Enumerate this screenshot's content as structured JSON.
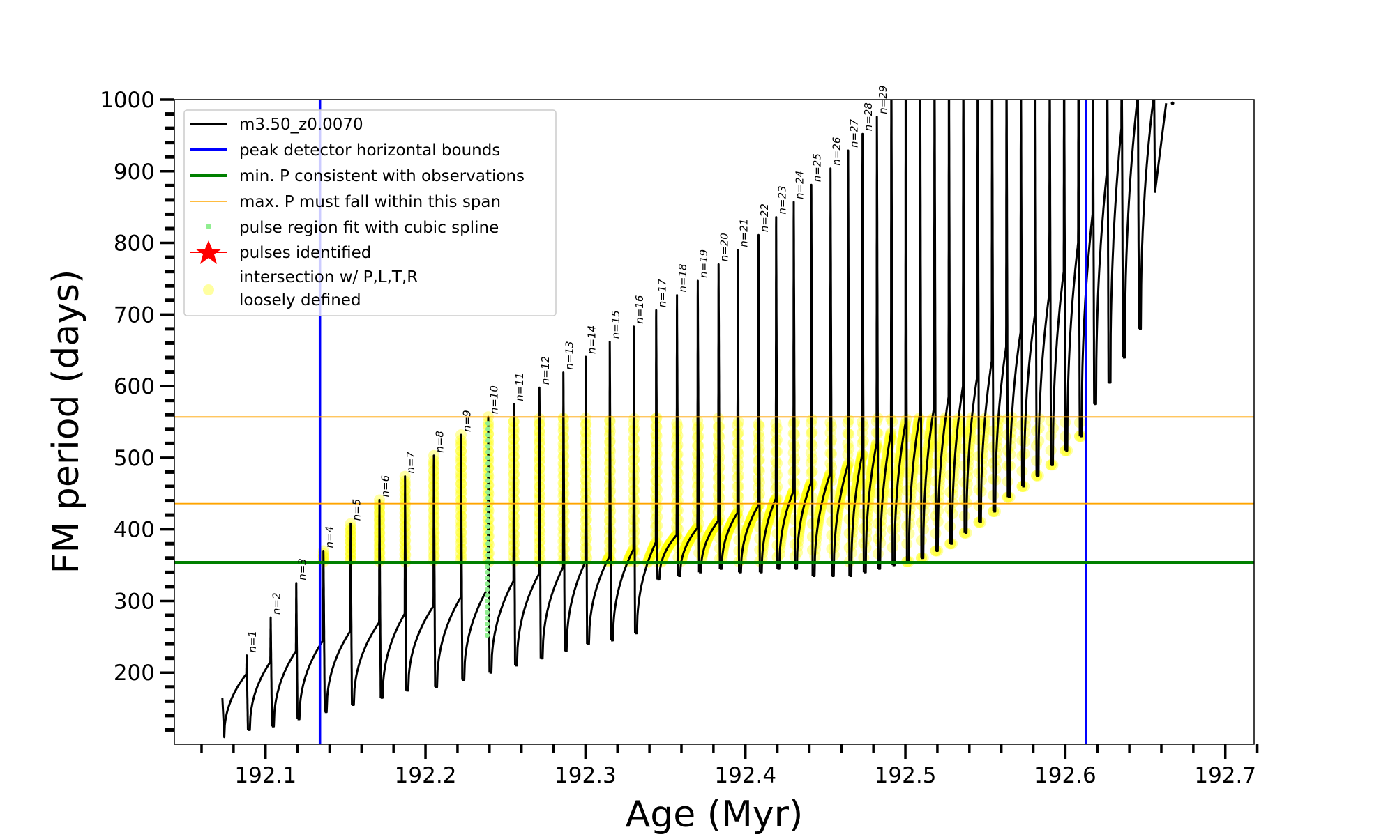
{
  "chart_data": {
    "type": "line",
    "title": "",
    "xlabel": "Age (Myr)",
    "ylabel": "FM period (days)",
    "xlim": [
      192.043,
      192.718
    ],
    "ylim": [
      100,
      1000
    ],
    "xticks": [
      "192.1",
      "192.2",
      "192.3",
      "192.4",
      "192.5",
      "192.6",
      "192.7"
    ],
    "yticks": [
      "200",
      "300",
      "400",
      "500",
      "600",
      "700",
      "800",
      "900",
      "1000"
    ],
    "grid": false,
    "legend_position": "top-left",
    "legend": [
      {
        "label": "m3.50_z0.0070",
        "kind": "line-marker",
        "color": "#000000"
      },
      {
        "label": "peak detector horizontal bounds",
        "kind": "line",
        "color": "#0000ff"
      },
      {
        "label": "min. P consistent with observations",
        "kind": "line",
        "color": "#008000"
      },
      {
        "label": "max. P must fall within this span",
        "kind": "thin-line",
        "color": "#ffa500"
      },
      {
        "label": "pulse region fit with cubic spline",
        "kind": "dot",
        "color": "#90ee90"
      },
      {
        "label": "pulses identified",
        "kind": "star",
        "color": "#ff0000"
      },
      {
        "label": "intersection w/ P,L,T,R",
        "label2": "loosely defined",
        "kind": "dot",
        "color": "#ffffa0"
      }
    ],
    "vertical_bounds": [
      192.134,
      192.613
    ],
    "min_period": 354,
    "max_period_span": [
      436,
      557
    ],
    "spline_pulse_age": 192.239,
    "spline_range": [
      252,
      555
    ],
    "start_point": {
      "age": 192.073,
      "period": 165,
      "dip": 110
    },
    "end_point": {
      "age": 192.667,
      "period": 995
    },
    "pulses": {
      "labels": [
        "n=1",
        "n=2",
        "n=3",
        "n=4",
        "n=5",
        "n=6",
        "n=7",
        "n=8",
        "n=9",
        "n=10",
        "n=11",
        "n=12",
        "n=13",
        "n=14",
        "n=15",
        "n=16",
        "n=17",
        "n=18",
        "n=19",
        "n=20",
        "n=21",
        "n=22",
        "n=23",
        "n=24",
        "n=25",
        "n=26",
        "n=27",
        "n=28",
        "n=29"
      ],
      "age": [
        192.088,
        192.103,
        192.119,
        192.136,
        192.153,
        192.171,
        192.187,
        192.205,
        192.222,
        192.239,
        192.255,
        192.271,
        192.286,
        192.3,
        192.315,
        192.33,
        192.344,
        192.357,
        192.37,
        192.383,
        192.395,
        192.408,
        192.419,
        192.43,
        192.441,
        192.453,
        192.464,
        192.473,
        192.482,
        192.491,
        192.5,
        192.509,
        192.518,
        192.527,
        192.536,
        192.545,
        192.554,
        192.563,
        192.572,
        192.581,
        192.59,
        192.599,
        192.608,
        192.617,
        192.626,
        192.635,
        192.645,
        192.655
      ],
      "peak": [
        224,
        277,
        325,
        370,
        408,
        441,
        474,
        503,
        532,
        557,
        575,
        598,
        619,
        641,
        662,
        683,
        706,
        727,
        747,
        770,
        790,
        811,
        836,
        857,
        881,
        904,
        929,
        952,
        976,
        1100,
        1100,
        1100,
        1100,
        1100,
        1100,
        1100,
        1100,
        1100,
        1100,
        1100,
        1100,
        1100,
        1100,
        1100,
        1100,
        1100,
        1100,
        1100
      ],
      "plateau": [
        198,
        215,
        230,
        245,
        258,
        270,
        282,
        293,
        305,
        318,
        328,
        338,
        347,
        355,
        362,
        372,
        382,
        392,
        402,
        412,
        423,
        433,
        443,
        453,
        465,
        478,
        490,
        505,
        520,
        535,
        548,
        560,
        572,
        585,
        600,
        615,
        635,
        655,
        675,
        700,
        730,
        760,
        800,
        840,
        900,
        960,
        1000,
        1000
      ],
      "dip": [
        120,
        125,
        135,
        145,
        155,
        165,
        175,
        180,
        190,
        200,
        210,
        220,
        230,
        240,
        245,
        255,
        330,
        335,
        340,
        345,
        340,
        340,
        345,
        345,
        335,
        335,
        335,
        340,
        345,
        350,
        355,
        360,
        370,
        380,
        395,
        410,
        425,
        445,
        460,
        475,
        490,
        510,
        530,
        575,
        605,
        640,
        680,
        870
      ]
    }
  }
}
